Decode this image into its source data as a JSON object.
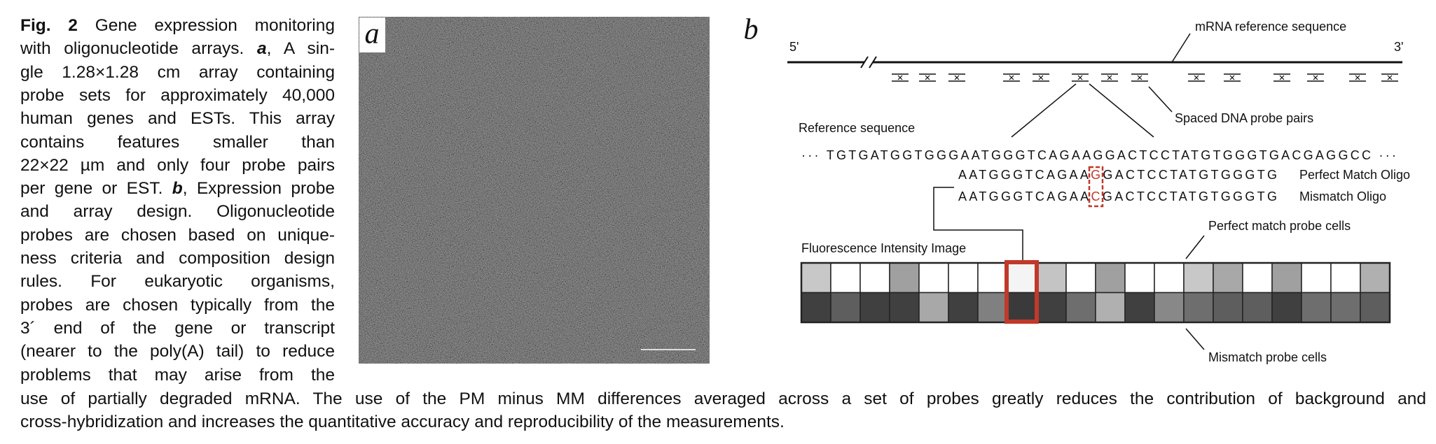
{
  "caption": {
    "lines": [
      [
        "Fig. 2",
        " Gene expression monitoring"
      ],
      [
        "with oligonucleotide arrays. ",
        "a",
        ", A sin-"
      ],
      [
        "gle 1.28×1.28 cm array containing"
      ],
      [
        "probe sets for approximately 40,000"
      ],
      [
        "human genes and ESTs. This array"
      ],
      [
        "contains features smaller than"
      ],
      [
        "22×22 µm and only four probe pairs"
      ],
      [
        "per gene or EST. ",
        "b",
        ", Expression probe"
      ],
      [
        "and array design. Oligonucleotide"
      ],
      [
        "probes are chosen based on unique-"
      ],
      [
        "ness criteria and composition design"
      ],
      [
        "rules. For eukaryotic organisms,"
      ],
      [
        "probes are chosen typically from the"
      ],
      [
        "3´ end of the gene or transcript"
      ],
      [
        "(nearer to the poly(A) tail) to reduce"
      ],
      [
        "problems that may arise from the"
      ],
      [
        "use of partially degraded mRNA. The use of the PM minus MM differences averaged across a set of probes greatly reduces the contribution of background and"
      ],
      [
        "cross-hybridization and increases the quantitative accuracy and reproducibility of the measurements."
      ]
    ]
  },
  "panel_a": {
    "label": "a"
  },
  "panel_b": {
    "label": "b",
    "five_prime": "5'",
    "three_prime": "3'",
    "mrna_label": "mRNA reference sequence",
    "probe_pairs_label": "Spaced DNA probe pairs",
    "reference_label": "Reference sequence",
    "reference_sequence": "··· TGTGATGGTGGGAATGGGTCAGAAGGACTCCTATGTGGGTGACGAGGCC ···",
    "perfect_match": {
      "segments": [
        "AATGGGTCAGAA",
        "G",
        "GACTCCTATGTGGGTG"
      ],
      "label": "Perfect Match Oligo"
    },
    "mismatch": {
      "segments": [
        "AATGGGTCAGAA",
        "C",
        "GACTCCTATGTGGGTG"
      ],
      "label": "Mismatch Oligo"
    },
    "image_label": "Fluorescence Intensity Image",
    "pm_cells_label": "Perfect match probe cells",
    "mm_cells_label": "Mismatch probe cells"
  }
}
